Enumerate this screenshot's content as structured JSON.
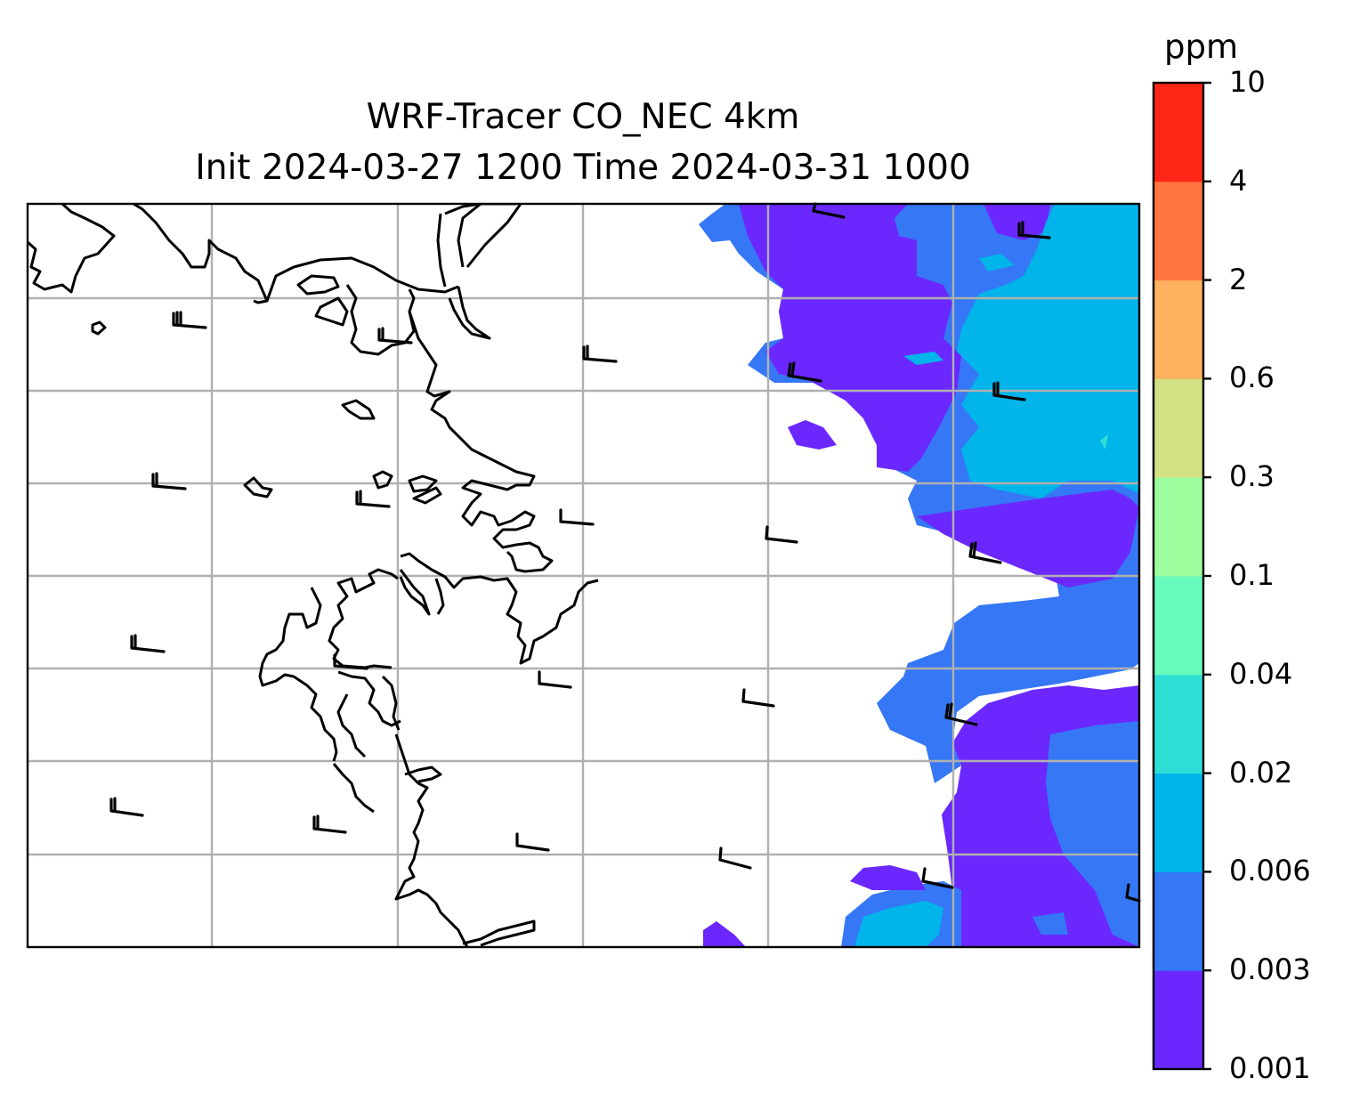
{
  "title": {
    "line1": "WRF-Tracer CO_NEC 4km",
    "line2": "Init 2024-03-27 1200 Time 2024-03-31 1000"
  },
  "colorbar": {
    "unit": "ppm",
    "levels": [
      "0.001",
      "0.003",
      "0.006",
      "0.02",
      "0.04",
      "0.1",
      "0.3",
      "0.6",
      "2",
      "4",
      "10"
    ],
    "colors": [
      "#6a28ff",
      "#3677f5",
      "#01b4ea",
      "#2fded5",
      "#68fbbc",
      "#9dfd9d",
      "#d2e183",
      "#ffb160",
      "#ff7440",
      "#ff2618"
    ]
  },
  "chart_data": {
    "type": "heatmap",
    "variable": "CO_NEC tracer",
    "units": "ppm",
    "contour_levels": [
      0.001,
      0.003,
      0.006,
      0.02,
      0.04,
      0.1,
      0.3,
      0.6,
      2,
      4,
      10
    ],
    "grid": true,
    "legend_placement": "right colorbar",
    "observed_max_band": "0.02-0.04",
    "features": [
      "coastlines",
      "wind barbs",
      "graticule"
    ]
  }
}
